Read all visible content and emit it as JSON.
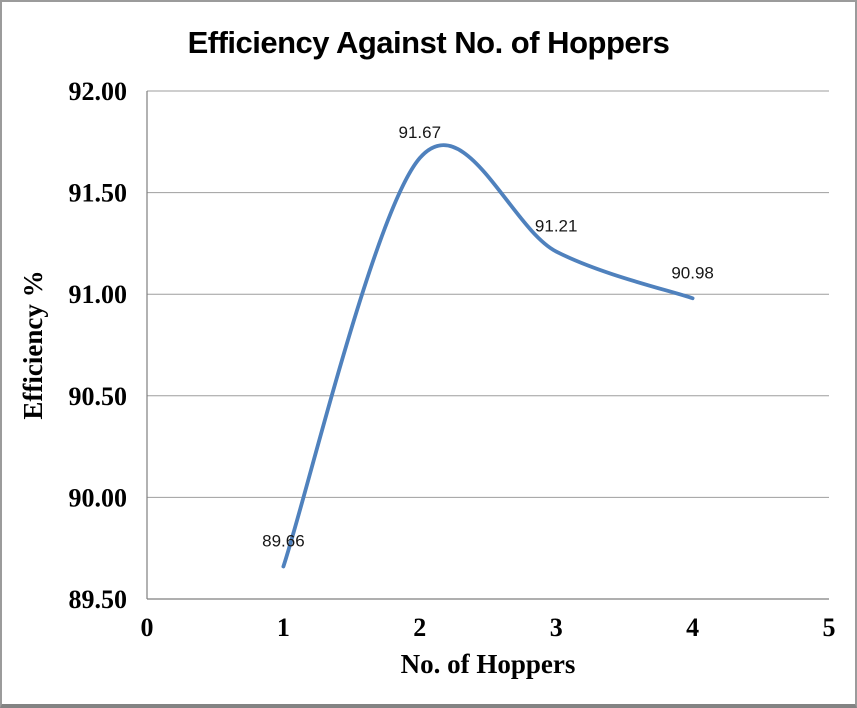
{
  "chart_data": {
    "type": "line",
    "title": "Efficiency Against No. of Hoppers",
    "xlabel": "No. of Hoppers",
    "ylabel": "Efficiency %",
    "x": [
      1,
      2,
      3,
      4
    ],
    "y": [
      89.66,
      91.67,
      91.21,
      90.98
    ],
    "point_labels": [
      "89.66",
      "91.67",
      "91.21",
      "90.98"
    ],
    "xlim": [
      0,
      5
    ],
    "ylim": [
      89.5,
      92.0
    ],
    "x_ticks": [
      0,
      1,
      2,
      3,
      4,
      5
    ],
    "x_tick_labels": [
      "0",
      "1",
      "2",
      "3",
      "4",
      "5"
    ],
    "y_ticks": [
      89.5,
      90.0,
      90.5,
      91.0,
      91.5,
      92.0
    ],
    "y_tick_labels": [
      "89.50",
      "90.00",
      "90.50",
      "91.00",
      "91.50",
      "92.00"
    ],
    "smooth": true,
    "legend": "none",
    "grid": "horizontal",
    "colors": {
      "series_line": "#4F81BD",
      "gridline": "#9e9e9e",
      "axis_line": "#7f7f7f",
      "text": "#000000"
    }
  }
}
